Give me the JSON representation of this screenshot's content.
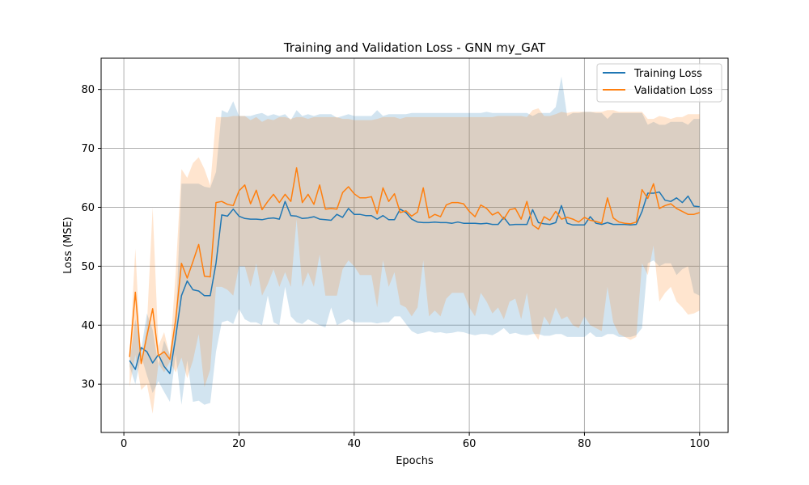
{
  "chart_data": {
    "type": "line",
    "title": "Training and Validation Loss - GNN my_GAT",
    "xlabel": "Epochs",
    "ylabel": "Loss (MSE)",
    "xlim": [
      -3.95,
      104.95
    ],
    "ylim": [
      21.8,
      85.3
    ],
    "xticks": [
      0,
      20,
      40,
      60,
      80,
      100
    ],
    "yticks": [
      30,
      40,
      50,
      60,
      70,
      80
    ],
    "grid": true,
    "legend_position": "top-right",
    "series": [
      {
        "name": "Training Loss",
        "color": "#1f77b4",
        "band_color": "#1f77b4",
        "band_opacity": 0.2,
        "x": [
          1,
          2,
          3,
          4,
          5,
          6,
          7,
          8,
          9,
          10,
          11,
          12,
          13,
          14,
          15,
          16,
          17,
          18,
          19,
          20,
          21,
          22,
          23,
          24,
          25,
          26,
          27,
          28,
          29,
          30,
          31,
          32,
          33,
          34,
          35,
          36,
          37,
          38,
          39,
          40,
          41,
          42,
          43,
          44,
          45,
          46,
          47,
          48,
          49,
          50,
          51,
          52,
          53,
          54,
          55,
          56,
          57,
          58,
          59,
          60,
          61,
          62,
          63,
          64,
          65,
          66,
          67,
          68,
          69,
          70,
          71,
          72,
          73,
          74,
          75,
          76,
          77,
          78,
          79,
          80,
          81,
          82,
          83,
          84,
          85,
          86,
          87,
          88,
          89,
          90,
          91,
          92,
          93,
          94,
          95,
          96,
          97,
          98,
          99,
          100
        ],
        "mean": [
          34.0,
          32.5,
          36.2,
          35.5,
          33.6,
          35.0,
          33.0,
          31.8,
          38.0,
          45.0,
          47.5,
          46.0,
          45.8,
          45.0,
          45.0,
          50.5,
          58.7,
          58.5,
          59.7,
          58.5,
          58.1,
          58.0,
          58.0,
          57.9,
          58.1,
          58.2,
          58.0,
          61.0,
          58.6,
          58.5,
          58.1,
          58.2,
          58.4,
          58.0,
          57.9,
          57.8,
          58.8,
          58.3,
          59.8,
          58.8,
          58.8,
          58.6,
          58.6,
          58.0,
          58.6,
          57.9,
          57.9,
          59.7,
          59.1,
          58.0,
          57.5,
          57.4,
          57.4,
          57.5,
          57.4,
          57.4,
          57.3,
          57.5,
          57.3,
          57.3,
          57.3,
          57.2,
          57.3,
          57.1,
          57.1,
          58.3,
          57.0,
          57.1,
          57.1,
          57.1,
          59.6,
          57.4,
          57.2,
          57.1,
          57.4,
          60.3,
          57.3,
          57.0,
          57.0,
          57.0,
          58.4,
          57.3,
          57.1,
          57.4,
          57.1,
          57.1,
          57.1,
          57.0,
          57.1,
          59.3,
          62.4,
          62.4,
          62.6,
          61.2,
          61.0,
          61.6,
          60.8,
          61.9,
          60.2,
          60.1
        ],
        "upper": [
          33.8,
          41.0,
          35.8,
          42.0,
          39.2,
          33.2,
          37.4,
          35.0,
          40.0,
          64.0,
          64.0,
          64.0,
          64.0,
          63.5,
          63.3,
          66.0,
          76.5,
          76.0,
          78.0,
          75.5,
          75.5,
          75.5,
          75.8,
          76.0,
          75.5,
          75.8,
          75.5,
          75.8,
          74.8,
          76.5,
          75.5,
          75.8,
          75.5,
          75.8,
          75.8,
          75.8,
          75.2,
          75.5,
          75.8,
          75.5,
          75.5,
          75.5,
          75.5,
          76.5,
          75.5,
          75.8,
          75.8,
          75.8,
          75.8,
          76.0,
          76.0,
          76.0,
          76.0,
          76.0,
          76.0,
          76.0,
          76.0,
          76.0,
          76.0,
          76.0,
          76.0,
          76.0,
          76.2,
          76.0,
          76.0,
          76.0,
          76.0,
          76.0,
          76.0,
          76.0,
          75.5,
          76.0,
          76.0,
          76.0,
          77.0,
          82.2,
          75.5,
          76.0,
          76.0,
          76.2,
          76.2,
          76.0,
          76.0,
          75.0,
          76.0,
          76.0,
          76.0,
          76.0,
          76.0,
          76.0,
          74.0,
          74.5,
          74.0,
          74.0,
          74.5,
          74.5,
          74.5,
          74.0,
          75.0,
          75.0
        ],
        "lower": [
          33.0,
          30.0,
          34.8,
          31.5,
          28.5,
          30.5,
          28.7,
          27.0,
          35.0,
          26.5,
          34.0,
          27.0,
          27.2,
          26.5,
          26.8,
          35.5,
          40.5,
          40.8,
          40.2,
          42.8,
          41.0,
          40.5,
          40.5,
          40.0,
          45.0,
          40.5,
          40.0,
          46.5,
          41.5,
          40.5,
          40.2,
          41.0,
          40.5,
          40.0,
          39.6,
          43.0,
          40.0,
          40.5,
          41.0,
          40.5,
          40.5,
          40.5,
          40.5,
          40.3,
          40.5,
          40.5,
          41.5,
          41.5,
          40.2,
          39.0,
          38.5,
          38.7,
          39.0,
          38.7,
          38.8,
          38.6,
          38.7,
          38.9,
          38.8,
          38.5,
          38.3,
          38.5,
          38.5,
          38.3,
          38.8,
          39.5,
          38.5,
          38.7,
          38.4,
          38.3,
          38.5,
          38.5,
          38.2,
          38.2,
          38.5,
          38.5,
          38.0,
          38.0,
          38.0,
          38.0,
          38.8,
          38.0,
          38.0,
          38.5,
          38.5,
          38.0,
          38.0,
          38.0,
          38.3,
          39.5,
          50.5,
          51.0,
          50.0,
          50.5,
          50.5,
          48.5,
          49.5,
          50.0,
          45.5,
          45.0
        ]
      },
      {
        "name": "Validation Loss",
        "color": "#ff7f0e",
        "band_color": "#ff7f0e",
        "band_opacity": 0.2,
        "x": [
          1,
          2,
          3,
          4,
          5,
          6,
          7,
          8,
          9,
          10,
          11,
          12,
          13,
          14,
          15,
          16,
          17,
          18,
          19,
          20,
          21,
          22,
          23,
          24,
          25,
          26,
          27,
          28,
          29,
          30,
          31,
          32,
          33,
          34,
          35,
          36,
          37,
          38,
          39,
          40,
          41,
          42,
          43,
          44,
          45,
          46,
          47,
          48,
          49,
          50,
          51,
          52,
          53,
          54,
          55,
          56,
          57,
          58,
          59,
          60,
          61,
          62,
          63,
          64,
          65,
          66,
          67,
          68,
          69,
          70,
          71,
          72,
          73,
          74,
          75,
          76,
          77,
          78,
          79,
          80,
          81,
          82,
          83,
          84,
          85,
          86,
          87,
          88,
          89,
          90,
          91,
          92,
          93,
          94,
          95,
          96,
          97,
          98,
          99,
          100
        ],
        "mean": [
          34.6,
          45.6,
          33.5,
          38.2,
          42.8,
          34.8,
          35.5,
          34.2,
          41.0,
          50.5,
          48.0,
          50.8,
          53.7,
          48.3,
          48.2,
          60.8,
          61.0,
          60.5,
          60.3,
          62.8,
          63.8,
          60.6,
          62.9,
          59.6,
          61.0,
          62.2,
          60.8,
          62.2,
          61.0,
          66.7,
          60.8,
          62.2,
          60.5,
          63.8,
          59.7,
          59.8,
          59.7,
          62.5,
          63.5,
          62.3,
          61.6,
          61.6,
          61.8,
          58.9,
          63.3,
          61.0,
          62.3,
          59.1,
          59.4,
          58.5,
          59.2,
          63.3,
          58.2,
          58.8,
          58.4,
          60.4,
          60.8,
          60.8,
          60.6,
          59.3,
          58.4,
          60.4,
          59.8,
          58.7,
          59.2,
          58.0,
          59.6,
          59.8,
          58.0,
          61.0,
          57.0,
          56.3,
          58.4,
          57.8,
          59.3,
          58.0,
          58.3,
          58.0,
          57.5,
          58.3,
          57.8,
          57.6,
          57.3,
          61.6,
          58.2,
          57.5,
          57.3,
          57.2,
          57.5,
          63.0,
          61.5,
          64.0,
          59.8,
          60.3,
          60.6,
          59.8,
          59.3,
          58.8,
          58.8,
          59.1
        ],
        "upper": [
          35.0,
          53.0,
          33.5,
          40.0,
          60.0,
          36.5,
          38.8,
          34.8,
          49.0,
          66.5,
          65.0,
          67.5,
          68.5,
          66.5,
          63.7,
          75.3,
          75.3,
          75.3,
          75.5,
          75.5,
          75.5,
          74.8,
          75.3,
          74.5,
          75.0,
          74.8,
          75.3,
          75.3,
          75.0,
          75.3,
          75.3,
          75.0,
          75.3,
          75.3,
          75.3,
          75.3,
          75.3,
          75.0,
          75.0,
          74.8,
          74.8,
          74.8,
          74.8,
          75.0,
          75.3,
          75.3,
          75.3,
          75.0,
          75.3,
          75.3,
          75.3,
          75.3,
          75.3,
          75.3,
          75.3,
          75.3,
          75.3,
          75.3,
          75.3,
          75.3,
          75.3,
          75.3,
          75.3,
          75.3,
          75.5,
          75.5,
          75.5,
          75.5,
          75.5,
          75.3,
          76.5,
          76.8,
          75.5,
          75.5,
          75.8,
          76.2,
          76.0,
          76.2,
          76.2,
          76.2,
          76.2,
          76.2,
          76.2,
          76.5,
          76.5,
          76.2,
          76.2,
          76.2,
          76.2,
          76.2,
          75.0,
          75.0,
          75.5,
          75.3,
          75.0,
          75.3,
          75.3,
          75.8,
          75.8,
          75.8
        ],
        "lower": [
          29.5,
          35.0,
          29.0,
          30.0,
          25.0,
          33.5,
          32.0,
          33.8,
          32.0,
          34.5,
          31.0,
          34.0,
          38.5,
          29.5,
          32.5,
          46.5,
          46.5,
          46.0,
          45.0,
          50.0,
          50.0,
          46.5,
          50.5,
          45.0,
          47.0,
          49.5,
          46.5,
          49.0,
          46.5,
          58.0,
          46.5,
          49.0,
          46.5,
          52.0,
          45.0,
          45.0,
          45.0,
          49.5,
          51.0,
          50.0,
          48.5,
          48.5,
          48.5,
          43.0,
          51.0,
          46.5,
          49.0,
          43.5,
          43.0,
          41.5,
          43.0,
          51.0,
          41.5,
          42.5,
          41.5,
          44.5,
          45.5,
          45.5,
          45.5,
          43.0,
          41.5,
          45.5,
          44.0,
          42.0,
          43.0,
          41.0,
          44.0,
          44.5,
          41.0,
          45.5,
          39.0,
          37.5,
          41.5,
          40.0,
          43.0,
          41.0,
          41.5,
          40.0,
          39.5,
          41.5,
          40.0,
          39.5,
          39.0,
          46.5,
          40.5,
          38.5,
          38.0,
          37.5,
          38.0,
          50.5,
          48.5,
          53.5,
          44.0,
          45.5,
          46.5,
          44.0,
          43.0,
          41.8,
          42.0,
          42.5
        ]
      }
    ]
  }
}
